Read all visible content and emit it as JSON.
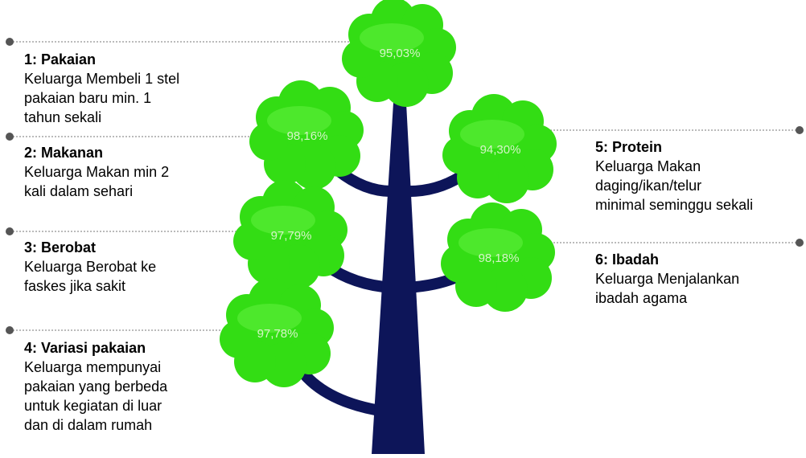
{
  "items": [
    {
      "title": "1: Pakaian",
      "lines": [
        "Keluarga Membeli 1 stel",
        "pakaian baru min. 1",
        "tahun sekali"
      ],
      "value": "95,03%"
    },
    {
      "title": "2: Makanan",
      "lines": [
        "Keluarga Makan min 2",
        "kali dalam sehari"
      ],
      "value": "98,16%"
    },
    {
      "title": "3: Berobat",
      "lines": [
        "Keluarga Berobat ke",
        "faskes jika sakit"
      ],
      "value": "97,79%"
    },
    {
      "title": "4: Variasi pakaian",
      "lines": [
        "Keluarga mempunyai",
        "pakaian yang berbeda",
        "untuk kegiatan di luar",
        "dan di dalam rumah"
      ],
      "value": "97,78%"
    },
    {
      "title": "5: Protein",
      "lines": [
        "Keluarga Makan",
        "daging/ikan/telur",
        "minimal seminggu sekali"
      ],
      "value": "94,30%"
    },
    {
      "title": "6: Ibadah",
      "lines": [
        "Keluarga Menjalankan",
        "ibadah agama"
      ],
      "value": "98,18%"
    }
  ]
}
